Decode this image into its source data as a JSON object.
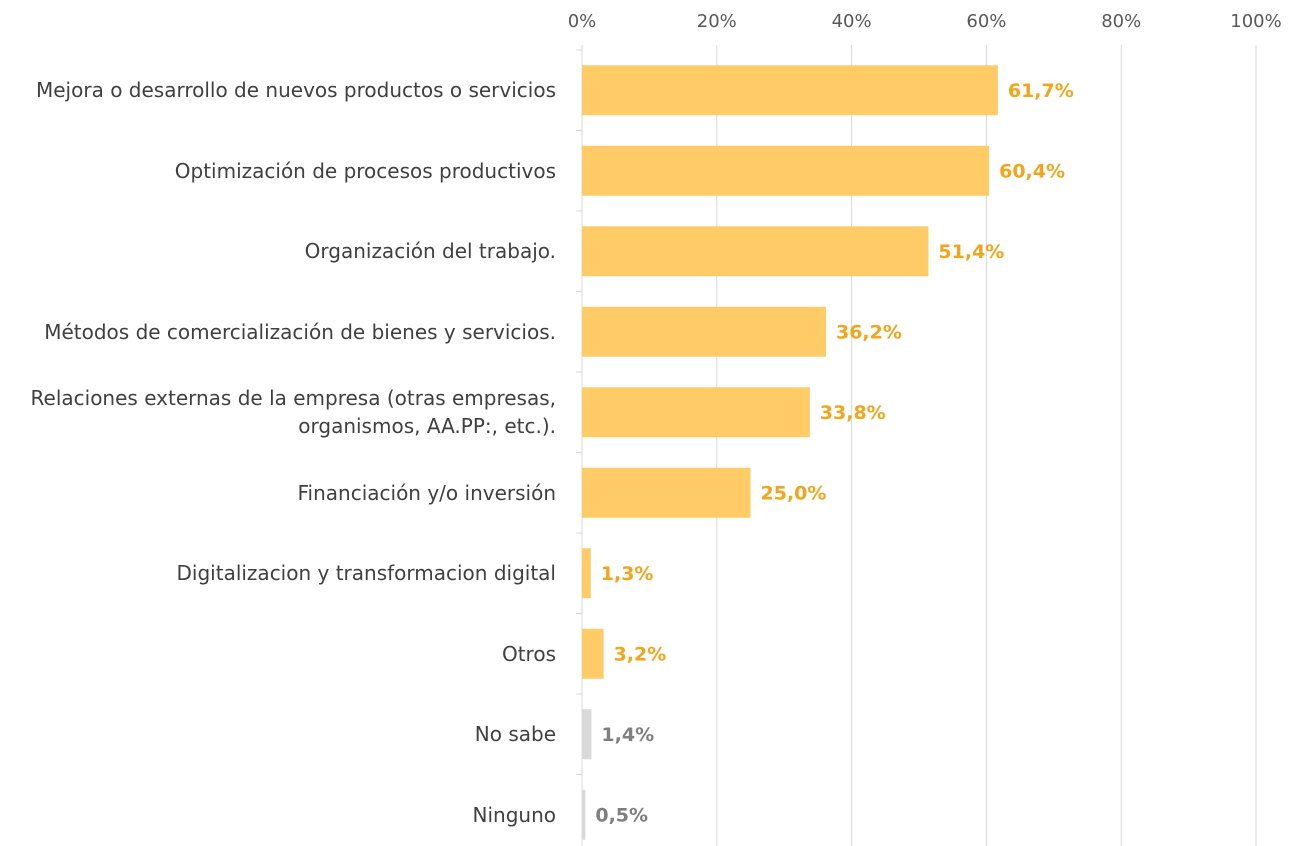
{
  "chart_data": {
    "type": "bar",
    "orientation": "horizontal",
    "categories": [
      "Mejora o desarrollo de nuevos productos o servicios",
      "Optimización de procesos productivos",
      "Organización del trabajo.",
      "Métodos de comercialización de bienes y servicios.",
      "Relaciones externas de la empresa (otras empresas, organismos, AA.PP:, etc.).",
      "Financiación y/o inversión",
      "Digitalizacion y transformacion digital",
      "Otros",
      "No sabe",
      "Ninguno"
    ],
    "values": [
      61.7,
      60.4,
      51.4,
      36.2,
      33.8,
      25.0,
      1.3,
      3.2,
      1.4,
      0.5
    ],
    "value_labels": [
      "61,7%",
      "60,4%",
      "51,4%",
      "36,2%",
      "33,8%",
      "25,0%",
      "1,3%",
      "3,2%",
      "1,4%",
      "0,5%"
    ],
    "colors": [
      "#fecb66",
      "#fecb66",
      "#fecb66",
      "#fecb66",
      "#fecb66",
      "#fecb66",
      "#fecb66",
      "#fecb66",
      "#d9d9d9",
      "#d9d9d9"
    ],
    "label_colors": [
      "#f5a319",
      "#f5a319",
      "#f5a319",
      "#f5a319",
      "#f5a319",
      "#f5a319",
      "#f5a319",
      "#f5a319",
      "#7f7f7f",
      "#7f7f7f"
    ],
    "xlim": [
      0,
      100
    ],
    "xticks": [
      {
        "value": 0,
        "label": "0%"
      },
      {
        "value": 20,
        "label": "20%"
      },
      {
        "value": 40,
        "label": "40%"
      },
      {
        "value": 60,
        "label": "60%"
      },
      {
        "value": 80,
        "label": "80%"
      },
      {
        "value": 100,
        "label": "100%"
      }
    ],
    "grid": true
  }
}
